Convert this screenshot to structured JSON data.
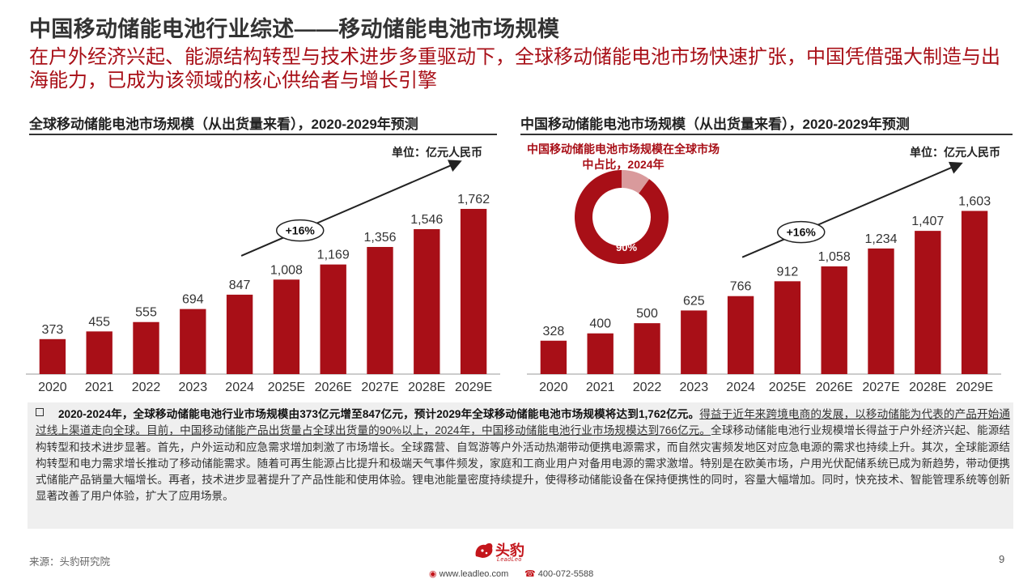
{
  "header": {
    "title": "中国移动储能电池行业综述——移动储能电池市场规模",
    "subtitle": "在户外经济兴起、能源结构转型与技术进步多重驱动下，全球移动储能电池市场快速扩张，中国凭借强大制造与出海能力，已成为该领域的核心供给者与增长引擎"
  },
  "chart_data": [
    {
      "type": "bar",
      "title": "全球移动储能电池市场规模（从出货量来看），2020-2029年预测",
      "unit": "单位：亿元人民币",
      "categories": [
        "2020",
        "2021",
        "2022",
        "2023",
        "2024",
        "2025E",
        "2026E",
        "2027E",
        "2028E",
        "2029E"
      ],
      "values": [
        373,
        455,
        555,
        694,
        847,
        1008,
        1169,
        1356,
        1546,
        1762
      ],
      "value_labels": [
        "373",
        "455",
        "555",
        "694",
        "847",
        "1,008",
        "1,169",
        "1,356",
        "1,546",
        "1,762"
      ],
      "growth_label": "+16%",
      "ylim": [
        0,
        1900
      ],
      "bar_color": "#a80f17"
    },
    {
      "type": "bar",
      "title": "中国移动储能电池市场规模（从出货量来看），2020-2029年预测",
      "unit": "单位：亿元人民币",
      "categories": [
        "2020",
        "2021",
        "2022",
        "2023",
        "2024",
        "2025E",
        "2026E",
        "2027E",
        "2028E",
        "2029E"
      ],
      "values": [
        328,
        400,
        500,
        625,
        766,
        912,
        1058,
        1234,
        1407,
        1603
      ],
      "value_labels": [
        "328",
        "400",
        "500",
        "625",
        "766",
        "912",
        "1,058",
        "1,234",
        "1,407",
        "1,603"
      ],
      "growth_label": "+16%",
      "ylim": [
        0,
        1750
      ],
      "bar_color": "#a80f17"
    },
    {
      "type": "pie",
      "title": "中国移动储能电池市场规模在全球市场中占比，2024年",
      "slices": [
        {
          "label": "90%",
          "value": 90,
          "color": "#a80f17"
        },
        {
          "label": "",
          "value": 10,
          "color": "#d99a9c"
        }
      ]
    }
  ],
  "note": {
    "bold": "2020-2024年，全球移动储能电池行业市场规模由373亿元增至847亿元，预计2029年全球移动储能电池市场规模将达到1,762亿元。",
    "underline": "得益于近年来跨境电商的发展，以移动储能为代表的产品开始通过线上渠道走向全球。目前，中国移动储能产品出货量占全球出货量的90%以上，2024年，中国移动储能电池行业市场规模达到766亿元。",
    "body": "全球移动储能电池行业规模增长得益于户外经济兴起、能源结构转型和技术进步显著。首先，户外运动和应急需求增加刺激了市场增长。全球露营、自驾游等户外活动热潮带动便携电源需求，而自然灾害频发地区对应急电源的需求也持续上升。其次，全球能源结构转型和电力需求增长推动了移动储能需求。随着可再生能源占比提升和极端天气事件频发，家庭和工商业用户对备用电源的需求激增。特别是在欧美市场，户用光伏配储系统已成为新趋势，带动便携式储能产品销量大幅增长。再者，技术进步显著提升了产品性能和使用体验。锂电池能量密度持续提升，使得移动储能设备在保持便携性的同时，容量大幅增加。同时，快充技术、智能管理系统等创新显著改善了用户体验，扩大了应用场景。"
  },
  "footer": {
    "source": "来源：头豹研究院",
    "page": "9",
    "logo_text": "头豹",
    "logo_sub": "LeadLeo",
    "website": "www.leadleo.com",
    "phone": "400-072-5588"
  }
}
